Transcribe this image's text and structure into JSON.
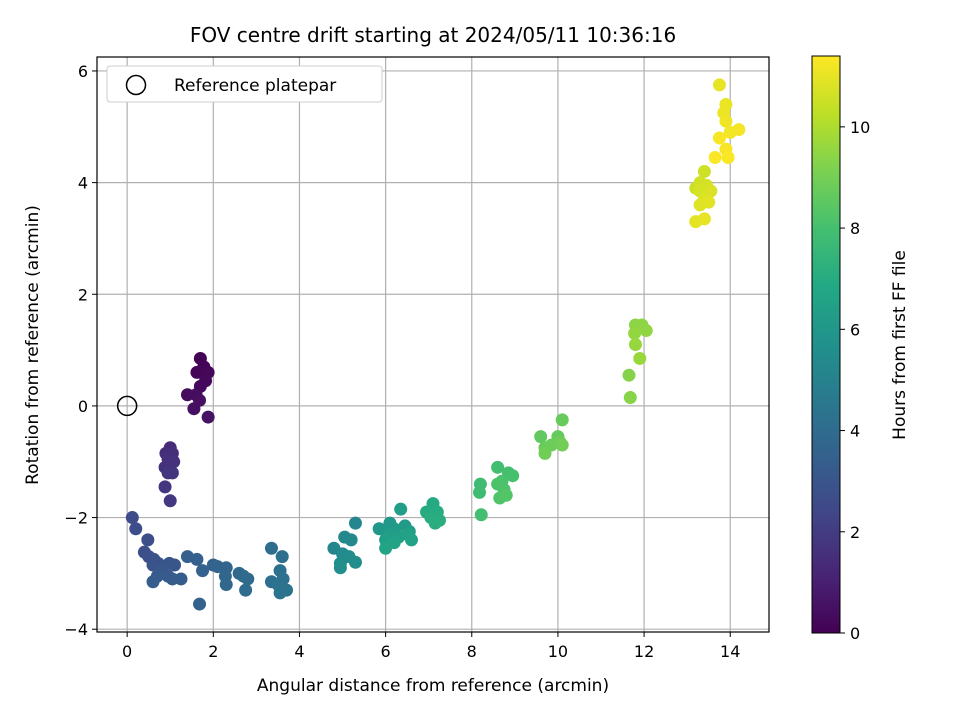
{
  "chart_data": {
    "type": "scatter",
    "title": "FOV centre drift starting at 2024/05/11 10:36:16",
    "xlabel": "Angular distance from reference (arcmin)",
    "ylabel": "Rotation from reference (arcmin)",
    "xlim": [
      -0.7,
      14.9
    ],
    "ylim": [
      -4.05,
      6.25
    ],
    "xticks": [
      0,
      2,
      4,
      6,
      8,
      10,
      12,
      14
    ],
    "yticks": [
      -4,
      -2,
      0,
      2,
      4,
      6
    ],
    "grid": true,
    "legend": {
      "location": "top-left",
      "entries": [
        "Reference platepar"
      ]
    },
    "reference_point": {
      "x": 0,
      "y": 0,
      "marker": "open-circle",
      "label": "Reference platepar"
    },
    "colorbar": {
      "label": "Hours from first FF file",
      "colormap": "viridis",
      "range": [
        0,
        11.4
      ],
      "ticks": [
        0,
        2,
        4,
        6,
        8,
        10
      ]
    },
    "points": [
      {
        "x": 1.7,
        "y": 0.85,
        "h": 0.05
      },
      {
        "x": 1.78,
        "y": 0.7,
        "h": 0.1
      },
      {
        "x": 1.62,
        "y": 0.6,
        "h": 0.15
      },
      {
        "x": 1.88,
        "y": 0.6,
        "h": 0.2
      },
      {
        "x": 1.82,
        "y": 0.45,
        "h": 0.25
      },
      {
        "x": 1.7,
        "y": 0.35,
        "h": 0.3
      },
      {
        "x": 1.4,
        "y": 0.2,
        "h": 0.35
      },
      {
        "x": 1.6,
        "y": 0.2,
        "h": 0.4
      },
      {
        "x": 1.68,
        "y": 0.1,
        "h": 0.45
      },
      {
        "x": 1.55,
        "y": -0.05,
        "h": 0.5
      },
      {
        "x": 1.88,
        "y": -0.2,
        "h": 0.55
      },
      {
        "x": 1.0,
        "y": -0.75,
        "h": 1.4
      },
      {
        "x": 0.9,
        "y": -0.85,
        "h": 1.45
      },
      {
        "x": 1.05,
        "y": -0.85,
        "h": 1.5
      },
      {
        "x": 0.95,
        "y": -0.95,
        "h": 1.55
      },
      {
        "x": 1.08,
        "y": -1.0,
        "h": 1.6
      },
      {
        "x": 0.88,
        "y": -1.1,
        "h": 1.65
      },
      {
        "x": 0.95,
        "y": -1.2,
        "h": 1.7
      },
      {
        "x": 1.05,
        "y": -1.2,
        "h": 1.75
      },
      {
        "x": 0.88,
        "y": -1.45,
        "h": 1.8
      },
      {
        "x": 1.0,
        "y": -1.7,
        "h": 1.85
      },
      {
        "x": 0.12,
        "y": -2.0,
        "h": 2.6
      },
      {
        "x": 0.2,
        "y": -2.2,
        "h": 2.65
      },
      {
        "x": 0.48,
        "y": -2.4,
        "h": 2.7
      },
      {
        "x": 0.4,
        "y": -2.62,
        "h": 2.75
      },
      {
        "x": 0.5,
        "y": -2.7,
        "h": 2.8
      },
      {
        "x": 0.62,
        "y": -2.75,
        "h": 2.85
      },
      {
        "x": 0.72,
        "y": -2.82,
        "h": 2.9
      },
      {
        "x": 0.6,
        "y": -2.85,
        "h": 2.95
      },
      {
        "x": 0.98,
        "y": -2.82,
        "h": 3.0
      },
      {
        "x": 1.1,
        "y": -2.85,
        "h": 3.05
      },
      {
        "x": 0.8,
        "y": -2.95,
        "h": 3.1
      },
      {
        "x": 0.95,
        "y": -3.05,
        "h": 3.15
      },
      {
        "x": 0.7,
        "y": -3.05,
        "h": 3.2
      },
      {
        "x": 1.05,
        "y": -3.1,
        "h": 3.25
      },
      {
        "x": 1.25,
        "y": -3.1,
        "h": 3.3
      },
      {
        "x": 0.6,
        "y": -3.15,
        "h": 3.35
      },
      {
        "x": 1.4,
        "y": -2.7,
        "h": 3.4
      },
      {
        "x": 1.62,
        "y": -2.75,
        "h": 3.45
      },
      {
        "x": 1.75,
        "y": -2.95,
        "h": 3.5
      },
      {
        "x": 1.68,
        "y": -3.55,
        "h": 3.55
      },
      {
        "x": 2.0,
        "y": -2.85,
        "h": 3.6
      },
      {
        "x": 2.1,
        "y": -2.88,
        "h": 3.65
      },
      {
        "x": 2.3,
        "y": -2.9,
        "h": 3.7
      },
      {
        "x": 2.28,
        "y": -3.05,
        "h": 3.75
      },
      {
        "x": 2.3,
        "y": -3.2,
        "h": 3.8
      },
      {
        "x": 2.6,
        "y": -3.0,
        "h": 3.85
      },
      {
        "x": 2.7,
        "y": -3.05,
        "h": 3.9
      },
      {
        "x": 2.8,
        "y": -3.1,
        "h": 3.95
      },
      {
        "x": 2.75,
        "y": -3.3,
        "h": 4.0
      },
      {
        "x": 3.35,
        "y": -2.55,
        "h": 4.05
      },
      {
        "x": 3.35,
        "y": -3.15,
        "h": 4.1
      },
      {
        "x": 3.6,
        "y": -2.7,
        "h": 4.15
      },
      {
        "x": 3.55,
        "y": -2.95,
        "h": 4.2
      },
      {
        "x": 3.62,
        "y": -3.1,
        "h": 4.25
      },
      {
        "x": 3.5,
        "y": -3.2,
        "h": 4.3
      },
      {
        "x": 3.7,
        "y": -3.3,
        "h": 4.35
      },
      {
        "x": 3.55,
        "y": -3.35,
        "h": 4.4
      },
      {
        "x": 4.8,
        "y": -2.55,
        "h": 5.2
      },
      {
        "x": 5.3,
        "y": -2.1,
        "h": 5.25
      },
      {
        "x": 5.05,
        "y": -2.35,
        "h": 5.3
      },
      {
        "x": 5.2,
        "y": -2.4,
        "h": 5.35
      },
      {
        "x": 5.0,
        "y": -2.65,
        "h": 5.4
      },
      {
        "x": 5.15,
        "y": -2.7,
        "h": 5.45
      },
      {
        "x": 4.95,
        "y": -2.82,
        "h": 5.5
      },
      {
        "x": 5.3,
        "y": -2.8,
        "h": 5.55
      },
      {
        "x": 4.95,
        "y": -2.9,
        "h": 5.6
      },
      {
        "x": 5.85,
        "y": -2.2,
        "h": 6.0
      },
      {
        "x": 6.1,
        "y": -2.1,
        "h": 6.05
      },
      {
        "x": 6.0,
        "y": -2.25,
        "h": 6.1
      },
      {
        "x": 6.2,
        "y": -2.2,
        "h": 6.15
      },
      {
        "x": 6.45,
        "y": -2.15,
        "h": 6.2
      },
      {
        "x": 6.55,
        "y": -2.25,
        "h": 6.25
      },
      {
        "x": 6.35,
        "y": -1.85,
        "h": 6.3
      },
      {
        "x": 6.1,
        "y": -2.3,
        "h": 6.35
      },
      {
        "x": 6.0,
        "y": -2.4,
        "h": 6.4
      },
      {
        "x": 6.3,
        "y": -2.35,
        "h": 6.45
      },
      {
        "x": 6.5,
        "y": -2.3,
        "h": 6.5
      },
      {
        "x": 6.6,
        "y": -2.4,
        "h": 6.55
      },
      {
        "x": 6.2,
        "y": -2.45,
        "h": 6.6
      },
      {
        "x": 6.0,
        "y": -2.55,
        "h": 6.65
      },
      {
        "x": 7.1,
        "y": -1.75,
        "h": 6.9
      },
      {
        "x": 6.95,
        "y": -1.9,
        "h": 6.95
      },
      {
        "x": 7.2,
        "y": -1.9,
        "h": 7.0
      },
      {
        "x": 7.05,
        "y": -2.0,
        "h": 7.05
      },
      {
        "x": 7.25,
        "y": -2.05,
        "h": 7.1
      },
      {
        "x": 7.15,
        "y": -2.1,
        "h": 7.15
      },
      {
        "x": 8.2,
        "y": -1.4,
        "h": 7.8
      },
      {
        "x": 8.18,
        "y": -1.55,
        "h": 7.85
      },
      {
        "x": 8.22,
        "y": -1.95,
        "h": 7.9
      },
      {
        "x": 8.6,
        "y": -1.1,
        "h": 7.95
      },
      {
        "x": 8.85,
        "y": -1.2,
        "h": 8.0
      },
      {
        "x": 8.95,
        "y": -1.25,
        "h": 8.05
      },
      {
        "x": 8.7,
        "y": -1.35,
        "h": 8.1
      },
      {
        "x": 8.6,
        "y": -1.4,
        "h": 8.15
      },
      {
        "x": 8.75,
        "y": -1.5,
        "h": 8.2
      },
      {
        "x": 8.65,
        "y": -1.65,
        "h": 8.25
      },
      {
        "x": 8.8,
        "y": -1.6,
        "h": 8.3
      },
      {
        "x": 9.6,
        "y": -0.55,
        "h": 8.6
      },
      {
        "x": 10.0,
        "y": -0.55,
        "h": 8.65
      },
      {
        "x": 10.1,
        "y": -0.25,
        "h": 8.7
      },
      {
        "x": 9.7,
        "y": -0.75,
        "h": 8.75
      },
      {
        "x": 9.85,
        "y": -0.7,
        "h": 8.8
      },
      {
        "x": 10.05,
        "y": -0.65,
        "h": 8.85
      },
      {
        "x": 9.7,
        "y": -0.85,
        "h": 8.9
      },
      {
        "x": 10.1,
        "y": -0.7,
        "h": 8.95
      },
      {
        "x": 11.65,
        "y": 0.55,
        "h": 9.3
      },
      {
        "x": 11.68,
        "y": 0.15,
        "h": 9.35
      },
      {
        "x": 11.8,
        "y": 1.45,
        "h": 9.4
      },
      {
        "x": 11.95,
        "y": 1.45,
        "h": 9.45
      },
      {
        "x": 12.05,
        "y": 1.35,
        "h": 9.5
      },
      {
        "x": 11.78,
        "y": 1.3,
        "h": 9.55
      },
      {
        "x": 11.8,
        "y": 1.1,
        "h": 9.6
      },
      {
        "x": 11.9,
        "y": 0.85,
        "h": 9.65
      },
      {
        "x": 13.2,
        "y": 3.9,
        "h": 10.5
      },
      {
        "x": 13.4,
        "y": 4.2,
        "h": 10.55
      },
      {
        "x": 13.3,
        "y": 4.0,
        "h": 10.6
      },
      {
        "x": 13.45,
        "y": 3.95,
        "h": 10.65
      },
      {
        "x": 13.3,
        "y": 3.85,
        "h": 10.7
      },
      {
        "x": 13.55,
        "y": 3.85,
        "h": 10.75
      },
      {
        "x": 13.4,
        "y": 3.7,
        "h": 10.8
      },
      {
        "x": 13.3,
        "y": 3.6,
        "h": 10.85
      },
      {
        "x": 13.5,
        "y": 3.65,
        "h": 10.9
      },
      {
        "x": 13.2,
        "y": 3.3,
        "h": 10.95
      },
      {
        "x": 13.4,
        "y": 3.35,
        "h": 11.0
      },
      {
        "x": 13.75,
        "y": 5.75,
        "h": 11.0
      },
      {
        "x": 13.9,
        "y": 5.4,
        "h": 11.05
      },
      {
        "x": 13.85,
        "y": 5.25,
        "h": 11.1
      },
      {
        "x": 13.9,
        "y": 5.1,
        "h": 11.15
      },
      {
        "x": 14.0,
        "y": 4.9,
        "h": 11.2
      },
      {
        "x": 14.2,
        "y": 4.95,
        "h": 11.25
      },
      {
        "x": 13.75,
        "y": 4.8,
        "h": 11.3
      },
      {
        "x": 13.9,
        "y": 4.6,
        "h": 11.3
      },
      {
        "x": 13.65,
        "y": 4.45,
        "h": 11.35
      },
      {
        "x": 13.95,
        "y": 4.45,
        "h": 11.35
      }
    ]
  }
}
